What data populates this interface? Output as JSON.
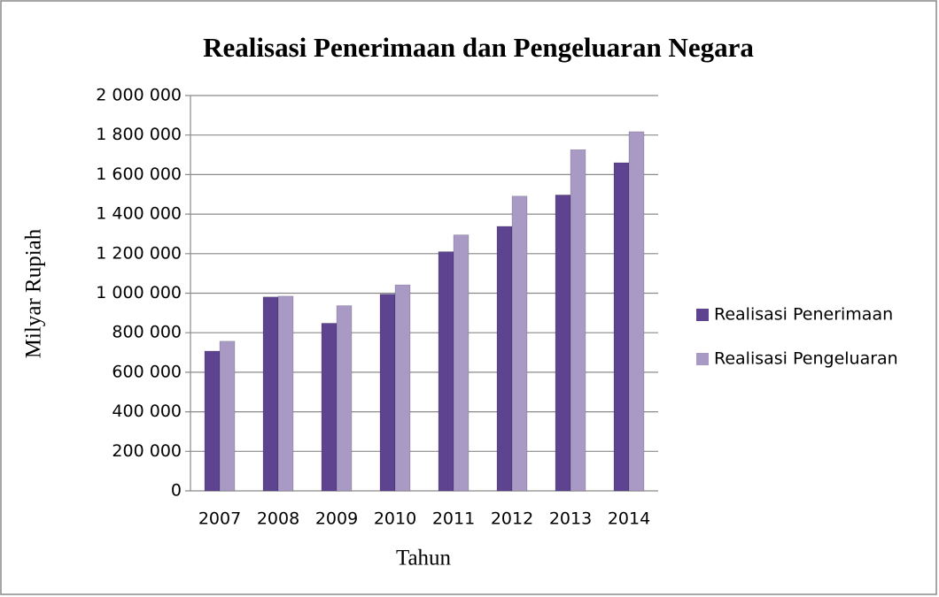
{
  "chart_data": {
    "type": "bar",
    "title": "Realisasi Penerimaan dan Pengeluaran Negara",
    "x_label": "Tahun",
    "y_label": "Milyar Rupiah",
    "categories": [
      "2007",
      "2008",
      "2009",
      "2010",
      "2011",
      "2012",
      "2013",
      "2014"
    ],
    "series": [
      {
        "name": "Realisasi Penerimaan",
        "color": "#5e4391",
        "values": [
          707000,
          981000,
          848000,
          995000,
          1210000,
          1338000,
          1497000,
          1660000
        ]
      },
      {
        "name": "Realisasi Pengeluaran",
        "color": "#a89ac4",
        "values": [
          757000,
          985000,
          937000,
          1042000,
          1295000,
          1491000,
          1726000,
          1817000
        ]
      }
    ],
    "ylim": [
      0,
      2000000
    ],
    "yticks": [
      0,
      {
        "value": 200000,
        "label": "200 000"
      },
      {
        "value": 400000,
        "label": "400 000"
      },
      {
        "value": 600000,
        "label": "600 000"
      },
      {
        "value": 800000,
        "label": "800 000"
      },
      {
        "value": 1000000,
        "label": "1 000 000"
      },
      {
        "value": 1200000,
        "label": "1 200 000"
      },
      {
        "value": 1400000,
        "label": "1 400 000"
      },
      {
        "value": 1600000,
        "label": "1 600 000"
      },
      {
        "value": 1800000,
        "label": "1 800 000"
      },
      {
        "value": 2000000,
        "label": "2 000 000"
      }
    ],
    "grid": true,
    "legend": "right"
  }
}
